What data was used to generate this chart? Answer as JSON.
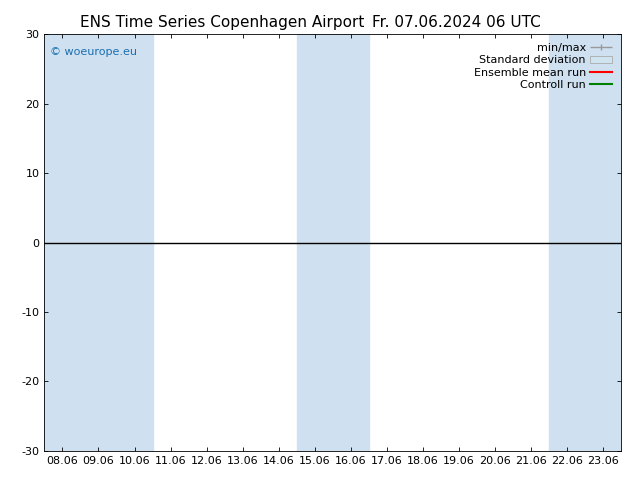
{
  "title_left": "ENS Time Series Copenhagen Airport",
  "title_right": "Fr. 07.06.2024 06 UTC",
  "xlabel_ticks": [
    "08.06",
    "09.06",
    "10.06",
    "11.06",
    "12.06",
    "13.06",
    "14.06",
    "15.06",
    "16.06",
    "17.06",
    "18.06",
    "19.06",
    "20.06",
    "21.06",
    "22.06",
    "23.06"
  ],
  "ylim": [
    -30,
    30
  ],
  "yticks": [
    -30,
    -20,
    -10,
    0,
    10,
    20,
    30
  ],
  "shaded_columns": [
    0,
    1,
    2,
    7,
    8,
    14,
    15
  ],
  "hline_y": 0,
  "watermark": "© woeurope.eu",
  "legend_items": [
    {
      "label": "min/max",
      "style": "minmax"
    },
    {
      "label": "Standard deviation",
      "style": "stddev"
    },
    {
      "label": "Ensemble mean run",
      "color": "red",
      "style": "line"
    },
    {
      "label": "Controll run",
      "color": "green",
      "style": "line"
    }
  ],
  "bg_color": "#ffffff",
  "plot_bg_color": "#ffffff",
  "shade_color": "#cfe0f0",
  "title_fontsize": 11,
  "tick_fontsize": 8,
  "legend_fontsize": 8,
  "watermark_color": "#1a6faf"
}
